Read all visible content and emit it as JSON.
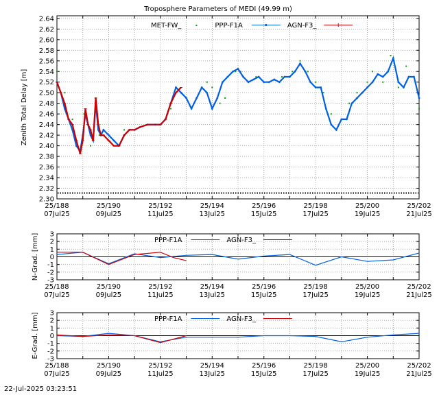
{
  "footer_timestamp": "22-Jul-2025 03:23:51",
  "x_ticks": [
    {
      "week": "25/188",
      "date": "07Jul25",
      "t": 0
    },
    {
      "week": "25/190",
      "date": "09Jul25",
      "t": 2
    },
    {
      "week": "25/192",
      "date": "11Jul25",
      "t": 4
    },
    {
      "week": "25/194",
      "date": "13Jul25",
      "t": 6
    },
    {
      "week": "25/196",
      "date": "15Jul25",
      "t": 8
    },
    {
      "week": "25/198",
      "date": "17Jul25",
      "t": 10
    },
    {
      "week": "25/200",
      "date": "19Jul25",
      "t": 12
    },
    {
      "week": "25/202",
      "date": "21Jul25",
      "t": 14
    }
  ],
  "colors": {
    "met": "#00a000",
    "ppp": "#0060e0",
    "agn": "#cc0000",
    "grid": "#999999"
  },
  "chart_data": [
    {
      "type": "line",
      "title": "Troposphere Parameters of MEDI (49.99 m)",
      "xlabel": "",
      "ylabel": "Zenith Total Delay [m]",
      "ylim": [
        2.3,
        2.645
      ],
      "xlim": [
        0,
        14
      ],
      "yticks": [
        "2.30",
        "2.32",
        "2.34",
        "2.36",
        "2.38",
        "2.40",
        "2.42",
        "2.44",
        "2.46",
        "2.48",
        "2.50",
        "2.52",
        "2.54",
        "2.56",
        "2.58",
        "2.60",
        "2.62",
        "2.64"
      ],
      "grid": true,
      "legend": "top",
      "baseline_series": {
        "name": "",
        "y": 2.311
      },
      "series": [
        {
          "name": "MET-FW_",
          "style": "points",
          "x": [
            0.0,
            0.3,
            0.6,
            0.9,
            1.05,
            1.3,
            1.5,
            1.65,
            1.8,
            2.2,
            2.6,
            3.0,
            3.5,
            4.0,
            4.4,
            4.6,
            5.0,
            5.4,
            5.8,
            6.0,
            6.3,
            6.5,
            6.9,
            7.1,
            7.4,
            7.7,
            8.2,
            8.7,
            9.1,
            9.4,
            9.7,
            10.0,
            10.3,
            10.6,
            10.9,
            11.1,
            11.3,
            11.6,
            12.0,
            12.2,
            12.6,
            12.9,
            13.2,
            13.5,
            13.8,
            14.0
          ],
          "y": [
            2.54,
            2.5,
            2.45,
            2.39,
            2.46,
            2.4,
            2.49,
            2.42,
            2.42,
            2.4,
            2.43,
            2.43,
            2.44,
            2.44,
            2.47,
            2.51,
            2.49,
            2.49,
            2.52,
            2.51,
            2.48,
            2.49,
            2.54,
            2.54,
            2.52,
            2.53,
            2.52,
            2.53,
            2.54,
            2.56,
            2.54,
            2.52,
            2.5,
            2.46,
            2.44,
            2.45,
            2.48,
            2.5,
            2.52,
            2.54,
            2.52,
            2.57,
            2.51,
            2.55,
            2.53,
            2.47
          ]
        },
        {
          "name": "PPP-F1A",
          "style": "line",
          "x": [
            0.0,
            0.15,
            0.3,
            0.45,
            0.6,
            0.75,
            0.9,
            1.0,
            1.1,
            1.2,
            1.3,
            1.4,
            1.5,
            1.6,
            1.7,
            1.8,
            2.0,
            2.2,
            2.4,
            2.6,
            2.8,
            3.0,
            3.2,
            3.5,
            3.8,
            4.0,
            4.2,
            4.4,
            4.6,
            4.8,
            5.0,
            5.2,
            5.4,
            5.6,
            5.8,
            6.0,
            6.2,
            6.4,
            6.6,
            6.8,
            7.0,
            7.2,
            7.4,
            7.6,
            7.8,
            8.0,
            8.2,
            8.4,
            8.6,
            8.8,
            9.0,
            9.2,
            9.4,
            9.6,
            9.8,
            10.0,
            10.2,
            10.4,
            10.6,
            10.8,
            11.0,
            11.2,
            11.4,
            11.6,
            11.8,
            12.0,
            12.2,
            12.4,
            12.6,
            12.8,
            13.0,
            13.2,
            13.4,
            13.6,
            13.8,
            14.0
          ],
          "y": [
            2.52,
            2.5,
            2.47,
            2.45,
            2.43,
            2.4,
            2.39,
            2.42,
            2.46,
            2.44,
            2.42,
            2.41,
            2.48,
            2.43,
            2.42,
            2.43,
            2.42,
            2.41,
            2.4,
            2.42,
            2.43,
            2.43,
            2.435,
            2.44,
            2.44,
            2.44,
            2.45,
            2.48,
            2.51,
            2.5,
            2.49,
            2.47,
            2.49,
            2.51,
            2.5,
            2.47,
            2.49,
            2.52,
            2.53,
            2.54,
            2.545,
            2.53,
            2.52,
            2.525,
            2.53,
            2.52,
            2.52,
            2.525,
            2.52,
            2.53,
            2.53,
            2.54,
            2.555,
            2.54,
            2.52,
            2.51,
            2.51,
            2.47,
            2.44,
            2.43,
            2.45,
            2.45,
            2.48,
            2.49,
            2.5,
            2.51,
            2.52,
            2.535,
            2.53,
            2.54,
            2.565,
            2.52,
            2.51,
            2.53,
            2.53,
            2.49
          ]
        },
        {
          "name": "AGN-F3_",
          "style": "line-points",
          "x": [
            0.0,
            0.15,
            0.3,
            0.45,
            0.6,
            0.75,
            0.9,
            1.0,
            1.1,
            1.2,
            1.3,
            1.4,
            1.5,
            1.6,
            1.7,
            1.8,
            2.0,
            2.2,
            2.4,
            2.6,
            2.8,
            3.0,
            3.2,
            3.5,
            3.8,
            4.0,
            4.2,
            4.4,
            4.6,
            4.8
          ],
          "y": [
            2.52,
            2.5,
            2.48,
            2.45,
            2.44,
            2.41,
            2.385,
            2.41,
            2.47,
            2.44,
            2.43,
            2.41,
            2.49,
            2.44,
            2.42,
            2.42,
            2.41,
            2.4,
            2.4,
            2.42,
            2.43,
            2.43,
            2.435,
            2.44,
            2.44,
            2.44,
            2.45,
            2.48,
            2.5,
            2.51
          ]
        }
      ]
    },
    {
      "type": "line",
      "title": "",
      "xlabel": "",
      "ylabel": "N-Grad. [mm]",
      "ylim": [
        -3,
        3
      ],
      "xlim": [
        0,
        14
      ],
      "yticks": [
        "-3",
        "-2",
        "-1",
        "0",
        "1",
        "2",
        "3"
      ],
      "grid": true,
      "legend": "top",
      "series": [
        {
          "name": "PPP-F1A",
          "x": [
            0,
            1,
            2,
            3,
            4,
            5,
            6,
            7,
            8,
            9,
            10,
            11,
            12,
            13,
            14
          ],
          "y": [
            0.3,
            0.6,
            -0.9,
            0.4,
            -0.1,
            0.2,
            0.3,
            -0.3,
            0.1,
            0.3,
            -1.1,
            0.0,
            -0.6,
            -0.4,
            0.5
          ]
        },
        {
          "name": "AGN-F3_",
          "x": [
            0,
            1,
            2,
            3,
            4,
            4.5,
            5
          ],
          "y": [
            0.6,
            0.6,
            -1.0,
            0.3,
            0.6,
            -0.1,
            -0.5
          ]
        }
      ]
    },
    {
      "type": "line",
      "title": "",
      "xlabel": "",
      "ylabel": "E-Grad. [mm]",
      "ylim": [
        -3,
        3
      ],
      "xlim": [
        0,
        14
      ],
      "yticks": [
        "-3",
        "-2",
        "-1",
        "0",
        "1",
        "2",
        "3"
      ],
      "grid": true,
      "legend": "top",
      "series": [
        {
          "name": "PPP-F1A",
          "x": [
            0,
            1,
            2,
            3,
            4,
            5,
            6,
            7,
            8,
            9,
            10,
            11,
            12,
            13,
            14
          ],
          "y": [
            0.0,
            -0.1,
            0.3,
            0.0,
            -0.8,
            -0.2,
            -0.2,
            -0.2,
            0.0,
            0.0,
            -0.1,
            -0.8,
            -0.2,
            0.1,
            0.3
          ]
        },
        {
          "name": "AGN-F3_",
          "x": [
            0,
            1,
            2,
            3,
            4,
            5
          ],
          "y": [
            0.1,
            -0.1,
            0.1,
            0.0,
            -0.9,
            0.0
          ]
        }
      ]
    }
  ]
}
